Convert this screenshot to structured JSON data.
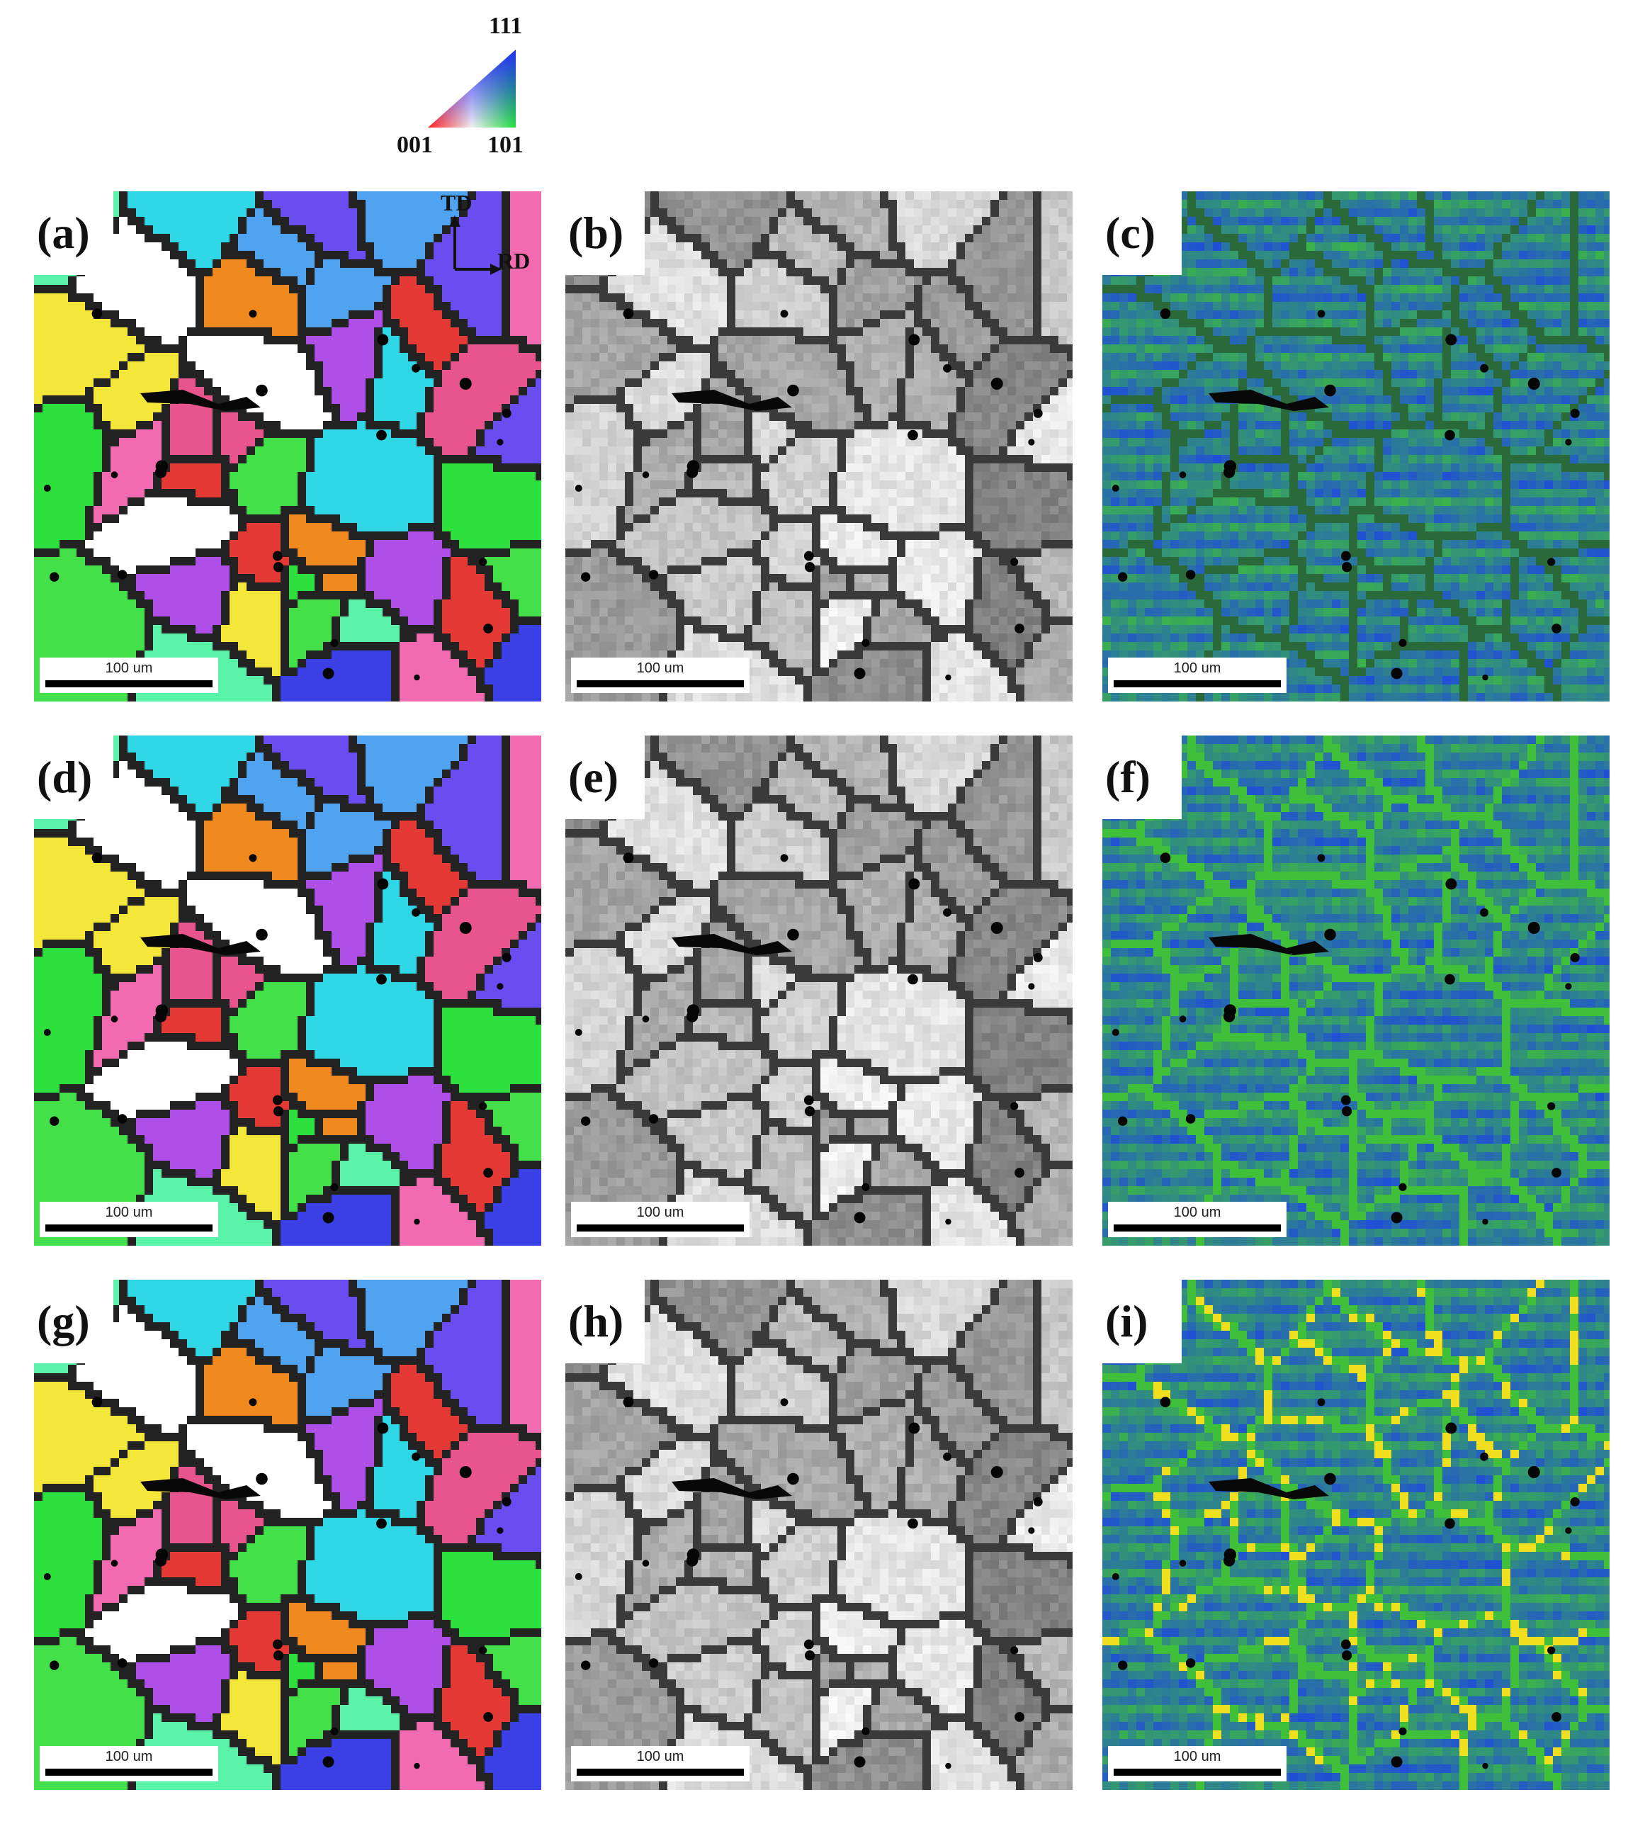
{
  "legend": {
    "corner_111": "111",
    "corner_001": "001",
    "corner_101": "101"
  },
  "axes": {
    "td": "TD",
    "rd": "RD"
  },
  "panels": [
    {
      "label": "(a)",
      "scale": "100 um",
      "type": "ipf"
    },
    {
      "label": "(b)",
      "scale": "100 um",
      "type": "iq"
    },
    {
      "label": "(c)",
      "scale": "100 um",
      "type": "kam"
    },
    {
      "label": "(d)",
      "scale": "100 um",
      "type": "ipf"
    },
    {
      "label": "(e)",
      "scale": "100 um",
      "type": "iq"
    },
    {
      "label": "(f)",
      "scale": "100 um",
      "type": "kam"
    },
    {
      "label": "(g)",
      "scale": "100 um",
      "type": "ipf"
    },
    {
      "label": "(h)",
      "scale": "100 um",
      "type": "iq"
    },
    {
      "label": "(i)",
      "scale": "100 um",
      "type": "kam"
    }
  ],
  "colors": {
    "ipf_grains": [
      "#e53935",
      "#43e04a",
      "#f08a1e",
      "#6a4df0",
      "#b04ee8",
      "#2fd6e6",
      "#f26bb0",
      "#3a40e6",
      "#ffffff",
      "#59f2a8",
      "#f5e63a",
      "#e8558c",
      "#4fa3f0",
      "#2ee03e"
    ],
    "iq_base": "#c8c8c8",
    "kam_low": "#1f4fd6",
    "kam_mid": "#3fbf3a",
    "kam_high": "#f0e020"
  }
}
